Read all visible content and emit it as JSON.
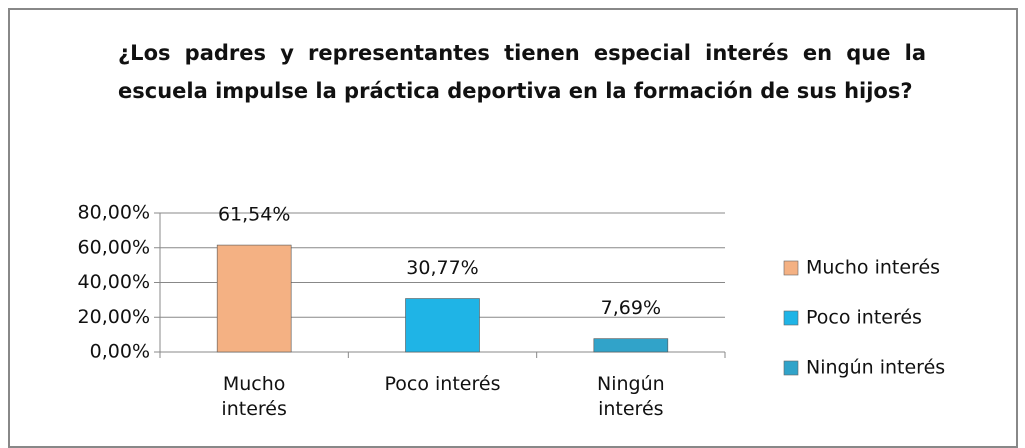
{
  "chart_data": {
    "type": "bar",
    "title": "¿Los padres y representantes tienen especial interés en que la escuela impulse la práctica deportiva en la formación de sus hijos?",
    "categories": [
      "Mucho interés",
      "Poco interés",
      "Ningún interés"
    ],
    "values": [
      61.54,
      30.77,
      7.69
    ],
    "value_labels": [
      "61,54%",
      "30,77%",
      "7,69%"
    ],
    "colors": [
      "#f4b183",
      "#1fb4e6",
      "#31a3c9"
    ],
    "ylim": [
      0,
      80
    ],
    "yticks": [
      {
        "value": 0,
        "label": "0,00%"
      },
      {
        "value": 20,
        "label": "20,00%"
      },
      {
        "value": 40,
        "label": "40,00%"
      },
      {
        "value": 60,
        "label": "60,00%"
      },
      {
        "value": 80,
        "label": "80,00%"
      }
    ],
    "grid": true,
    "legend": "right"
  }
}
